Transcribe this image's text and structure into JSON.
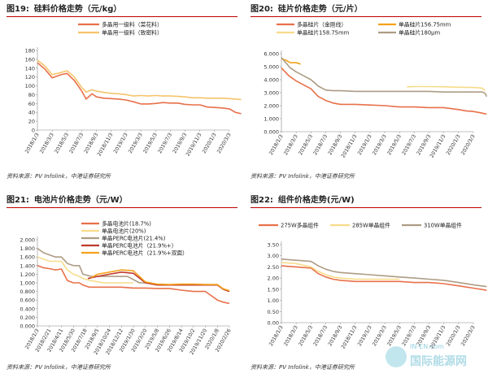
{
  "watermark": {
    "line1": "IN-EN.com",
    "line2": "国际能源网"
  },
  "charts": [
    {
      "number": "图19:",
      "title": "硅料价格走势（元/kg）",
      "source": "资料来源：PV Infolink，中港证券研究所",
      "chart_data": {
        "type": "line",
        "ylim": [
          0,
          180
        ],
        "yticks": [
          0,
          20,
          40,
          60,
          80,
          100,
          120,
          140,
          160,
          180
        ],
        "xticks": [
          "2018/1/3",
          "2018/3/3",
          "2018/5/3",
          "2018/7/3",
          "2018/9/3",
          "2018/11/3",
          "2019/1/3",
          "2019/3/3",
          "2019/5/3",
          "2019/7/3",
          "2019/9/3",
          "2019/11/3",
          "2020/1/3",
          "2020/3/3"
        ],
        "legend_position": "top",
        "series": [
          {
            "name": "多晶用一级料（菜花料）",
            "color": "#e8704a",
            "t": [
              0,
              0.5,
              1,
              1.6,
              2,
              2.5,
              3,
              3.3,
              3.7,
              4,
              4.5,
              5,
              5.5,
              6,
              6.5,
              7,
              7.5,
              8,
              8.5,
              9,
              9.5,
              10,
              10.5,
              11,
              11.5,
              12,
              12.5,
              13,
              13.4,
              13.8
            ],
            "values": [
              152,
              138,
              118,
              125,
              128,
              112,
              88,
              70,
              82,
              75,
              72,
              71,
              70,
              68,
              64,
              59,
              59,
              60,
              62,
              61,
              61,
              58,
              57,
              57,
              52,
              51,
              50,
              48,
              40,
              37
            ]
          },
          {
            "name": "单晶用一级料（致密料）",
            "color": "#f5c46a",
            "t": [
              0,
              0.5,
              1,
              1.6,
              2,
              2.5,
              3,
              3.3,
              3.7,
              4,
              4.5,
              5,
              5.5,
              6,
              6.5,
              7,
              7.5,
              8,
              8.5,
              9,
              9.5,
              10,
              10.5,
              11,
              11.5,
              12,
              12.5,
              13,
              13.4,
              13.8
            ],
            "values": [
              158,
              145,
              125,
              130,
              134,
              120,
              96,
              86,
              91,
              88,
              85,
              83,
              82,
              80,
              77,
              78,
              77,
              78,
              77,
              77,
              76,
              75,
              73,
              73,
              72,
              72,
              72,
              71,
              70,
              69
            ]
          }
        ]
      }
    },
    {
      "number": "图20:",
      "title": "硅片价格走势（元/片）",
      "source": "资料来源：PV Infolink，中港证券研究所",
      "chart_data": {
        "type": "line",
        "ylim": [
          0,
          6
        ],
        "yticks": [
          "0.000",
          "1.000",
          "2.000",
          "3.000",
          "4.000",
          "5.000",
          "6.000"
        ],
        "xticks": [
          "2018/1/3",
          "2018/3/3",
          "2018/5/3",
          "2018/7/3",
          "2018/9/3",
          "2018/11/3",
          "2019/1/3",
          "2019/3/3",
          "2019/5/3",
          "2019/7/3",
          "2019/9/3",
          "2019/11/3",
          "2020/1/3",
          "2020/3/3"
        ],
        "legend_position": "top",
        "series": [
          {
            "name": "多晶硅片（金刚线）",
            "color": "#e8704a",
            "t": [
              0,
              0.5,
              1,
              1.5,
              2,
              2.5,
              3,
              3.5,
              4,
              5,
              6,
              7,
              8,
              9,
              10,
              11,
              12,
              12.5,
              13,
              13.5,
              13.9
            ],
            "values": [
              4.9,
              4.3,
              3.9,
              3.6,
              3.3,
              2.7,
              2.4,
              2.2,
              2.1,
              2.1,
              2.05,
              2.0,
              1.9,
              1.9,
              1.85,
              1.85,
              1.7,
              1.6,
              1.55,
              1.45,
              1.35
            ]
          },
          {
            "name": "单晶硅片156.75mm",
            "color": "#f5a21a",
            "t": [
              0,
              0.3,
              0.6,
              1,
              1.3
            ],
            "values": [
              5.6,
              5.5,
              5.3,
              5.3,
              5.2
            ]
          },
          {
            "name": "单晶硅片158.75mm",
            "color": "#f7dc8a",
            "t": [
              8.5,
              9,
              10,
              11,
              12,
              13,
              13.6,
              13.8
            ],
            "values": [
              3.45,
              3.47,
              3.47,
              3.45,
              3.42,
              3.4,
              3.35,
              3.15
            ]
          },
          {
            "name": "单晶硅片180μm",
            "color": "#ad9c84",
            "t": [
              0,
              0.3,
              0.6,
              1,
              1.5,
              2,
              2.5,
              3,
              3.5,
              4,
              5,
              6,
              7,
              8,
              9,
              10,
              11,
              12,
              13,
              13.6,
              13.8,
              13.9
            ],
            "values": [
              5.7,
              5.3,
              4.9,
              4.6,
              4.3,
              4.0,
              3.5,
              3.2,
              3.15,
              3.15,
              3.1,
              3.1,
              3.1,
              3.1,
              3.1,
              3.1,
              3.05,
              3.05,
              3.05,
              3.05,
              2.95,
              2.7
            ]
          }
        ]
      }
    },
    {
      "number": "图21:",
      "title": "电池片价格走势（元/W）",
      "source": "资料来源：PV Infolink，中港证券研究所",
      "chart_data": {
        "type": "line",
        "ylim": [
          0,
          2
        ],
        "yticks": [
          "0.000",
          "0.200",
          "0.400",
          "0.600",
          "0.800",
          "1.000",
          "1.200",
          "1.400",
          "1.600",
          "1.800",
          "2.000"
        ],
        "xticks": [
          "2018/1/3",
          "2018/2/21",
          "2018/4/11",
          "2018/5/30",
          "2018/7/18",
          "2018/9/5",
          "2018/10/24",
          "2018/12/12",
          "2019/1/30",
          "2019/3/20",
          "2019/5/8",
          "2019/6/26",
          "2019/8/14",
          "2019/10/2",
          "2019/11/20",
          "2020/1/8",
          "2020/2/26"
        ],
        "legend_position": "top-left",
        "series": [
          {
            "name": "多晶电池片(18.7%)",
            "color": "#e8704a",
            "t": [
              0,
              0.5,
              1,
              1.5,
              2,
              2.5,
              3,
              3.5,
              3.8,
              4.3,
              5,
              6,
              7,
              8,
              9,
              10,
              11,
              12,
              13,
              14,
              15,
              15.5,
              16
            ],
            "values": [
              1.4,
              1.35,
              1.33,
              1.3,
              1.32,
              1.05,
              1.0,
              1.0,
              0.95,
              0.9,
              0.9,
              0.9,
              0.9,
              0.88,
              0.88,
              0.87,
              0.87,
              0.83,
              0.8,
              0.8,
              0.6,
              0.55,
              0.52
            ]
          },
          {
            "name": "单晶电池片(20%)",
            "color": "#f7dc8a",
            "t": [
              0,
              0.5,
              1,
              1.5,
              2,
              2.5,
              3,
              3.5,
              3.8,
              4.5,
              5.5,
              6.5,
              7.5,
              8
            ],
            "values": [
              1.6,
              1.55,
              1.5,
              1.5,
              1.5,
              1.3,
              1.2,
              1.15,
              1.1,
              1.05,
              1.0,
              1.0,
              1.0,
              1.0
            ]
          },
          {
            "name": "单晶PERC电池片(21.4%)",
            "color": "#ad9c84",
            "t": [
              0,
              0.5,
              1,
              1.5,
              2,
              2.5,
              3,
              3.5,
              3.8,
              4.5,
              5.5,
              6.5,
              7.5,
              8.5,
              9.5
            ],
            "values": [
              1.8,
              1.7,
              1.65,
              1.6,
              1.6,
              1.45,
              1.4,
              1.4,
              1.2,
              1.15,
              1.15,
              1.15,
              1.15,
              1.0,
              1.0
            ]
          },
          {
            "name": "单晶PERC电池片（21.9%+）",
            "color": "#c0392b",
            "t": [
              4.2,
              5,
              6,
              7,
              8,
              9,
              10,
              11,
              12,
              13,
              14,
              15,
              15.5,
              16
            ],
            "values": [
              1.1,
              1.15,
              1.2,
              1.25,
              1.22,
              1.0,
              0.95,
              0.95,
              0.95,
              0.95,
              0.95,
              0.95,
              0.85,
              0.8
            ]
          },
          {
            "name": "单晶PERC电池片（21.9%+双面）",
            "color": "#f5a21a",
            "t": [
              4.5,
              5,
              6,
              7,
              8,
              9,
              10,
              11,
              12,
              13,
              14,
              15,
              15.5,
              16
            ],
            "values": [
              1.12,
              1.2,
              1.25,
              1.3,
              1.28,
              1.02,
              0.97,
              0.96,
              0.97,
              0.97,
              0.96,
              0.96,
              0.86,
              0.82
            ]
          }
        ]
      }
    },
    {
      "number": "图22:",
      "title": "组件价格走势(元/W)",
      "source": "资料来源：PV Infolink，中港证券研究所",
      "chart_data": {
        "type": "line",
        "ylim": [
          0,
          3.5
        ],
        "yticks": [
          "0.00",
          "0.50",
          "1.00",
          "1.50",
          "2.00",
          "2.50",
          "3.00",
          "3.50"
        ],
        "xticks": [
          "2018/1/3",
          "2018/3/3",
          "2018/5/3",
          "2018/7/3",
          "2018/9/3",
          "2018/11/3",
          "2019/1/3",
          "2019/3/3",
          "2019/5/3",
          "2019/7/3",
          "2019/9/3",
          "2019/11/3",
          "2020/1/3",
          "2020/3/3"
        ],
        "legend_position": "top",
        "series": [
          {
            "name": "275W多晶组件",
            "color": "#e8704a",
            "t": [
              0,
              1,
              2,
              2.5,
              3,
              3.5,
              4,
              5,
              6,
              7,
              8,
              9,
              10,
              11,
              12,
              13,
              13.5,
              13.9
            ],
            "values": [
              2.55,
              2.5,
              2.45,
              2.2,
              2.05,
              1.95,
              1.9,
              1.85,
              1.85,
              1.85,
              1.85,
              1.8,
              1.8,
              1.75,
              1.65,
              1.55,
              1.5,
              1.45
            ]
          },
          {
            "name": "285W单晶组件",
            "color": "#f7dc8a",
            "t": [
              0,
              1,
              2,
              2.5,
              3,
              3.5,
              4,
              5,
              6,
              7,
              8
            ],
            "values": [
              2.7,
              2.65,
              2.5,
              2.3,
              2.15,
              2.05,
              2.0,
              1.95,
              1.95,
              1.95,
              1.95
            ]
          },
          {
            "name": "310W单晶组件",
            "color": "#ad9c84",
            "t": [
              0,
              1,
              2,
              2.5,
              3,
              3.5,
              4,
              5,
              6,
              7,
              8,
              9,
              10,
              11,
              12,
              13,
              13.5,
              13.9
            ],
            "values": [
              2.85,
              2.8,
              2.75,
              2.55,
              2.4,
              2.3,
              2.25,
              2.2,
              2.15,
              2.1,
              2.05,
              2.0,
              1.95,
              1.9,
              1.8,
              1.7,
              1.65,
              1.62
            ]
          }
        ]
      }
    }
  ]
}
